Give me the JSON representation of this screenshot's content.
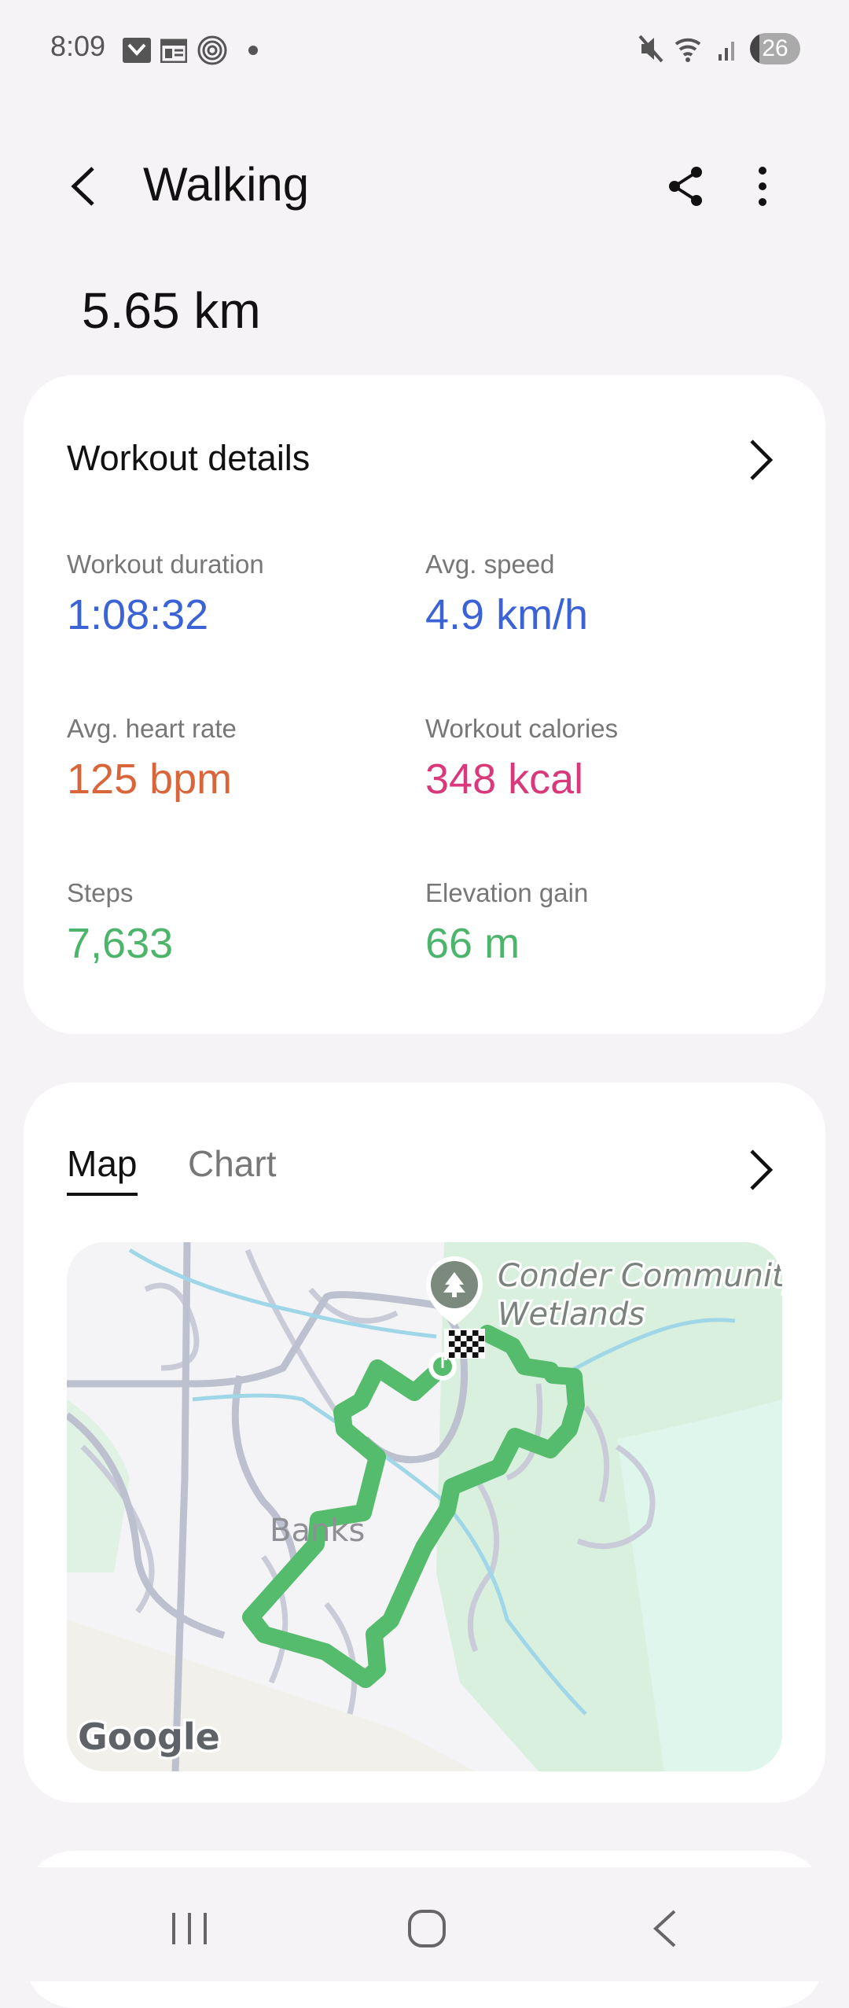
{
  "status_bar": {
    "time": "8:09",
    "battery": "26",
    "icons": [
      "mail-icon",
      "calendar-icon",
      "at-sign-icon",
      "dot-icon",
      "mute-icon",
      "wifi-icon",
      "signal-icon",
      "battery-icon"
    ]
  },
  "header": {
    "title": "Walking",
    "back_icon": "chevron-left-icon",
    "share_icon": "share-icon",
    "more_icon": "more-vertical-icon"
  },
  "distance": "5.65 km",
  "workout_details": {
    "title": "Workout details",
    "metrics": [
      {
        "label": "Workout duration",
        "value": "1:08:32",
        "color": "#3b63d6"
      },
      {
        "label": "Avg. speed",
        "value": "4.9 km/h",
        "color": "#3b63d6"
      },
      {
        "label": "Avg. heart rate",
        "value": "125 bpm",
        "color": "#d9653b"
      },
      {
        "label": "Workout calories",
        "value": "348 kcal",
        "color": "#d9397a"
      },
      {
        "label": "Steps",
        "value": "7,633",
        "color": "#4db56b"
      },
      {
        "label": "Elevation gain",
        "value": "66 m",
        "color": "#4db56b"
      }
    ]
  },
  "map_card": {
    "tabs": [
      {
        "label": "Map",
        "active": true
      },
      {
        "label": "Chart",
        "active": false
      }
    ],
    "map": {
      "place_label_1": "Conder Community",
      "place_label_2": "Wetlands",
      "suburb_label": "Banks",
      "logo": "Google",
      "route_color": "#55bb6d"
    }
  },
  "nav_bar": {
    "icons": [
      "recent-apps-icon",
      "home-icon",
      "back-icon"
    ]
  }
}
